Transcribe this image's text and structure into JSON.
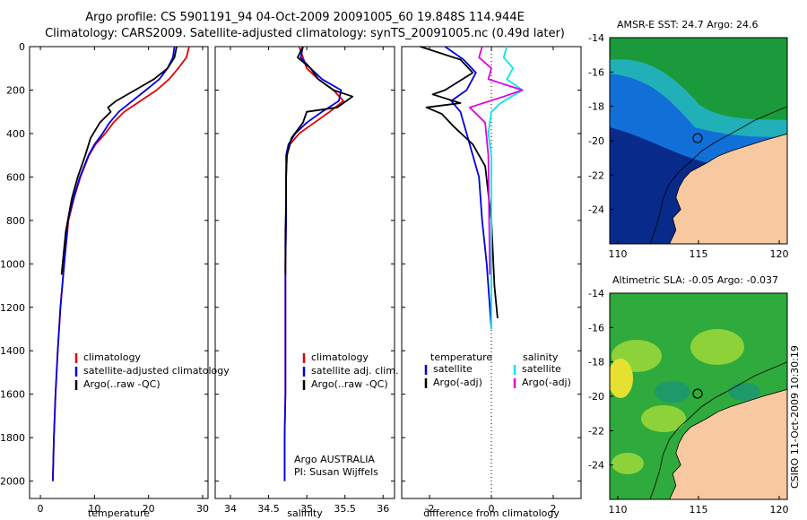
{
  "titles": {
    "line1": "Argo profile: CS 5901191_94 04-Oct-2009 20091005_60 19.848S 114.944E",
    "line2": "Climatology: CARS2009. Satellite-adjusted climatology: synTS_20091005.nc (0.49d later)"
  },
  "side_label": "CSIRO 11-Oct-2009 10:30:19",
  "colors": {
    "climatology": "#e00000",
    "satellite": "#0000e0",
    "argo": "#000000",
    "sal_satellite": "#00e8e8",
    "sal_argo": "#e000e0",
    "land": "#f8c8a0"
  },
  "chart_data": [
    {
      "type": "line",
      "id": "temperature",
      "xlabel": "temperature",
      "ylabel": "",
      "xlim": [
        -2,
        31
      ],
      "ylim": [
        2080,
        0
      ],
      "xticks": [
        0,
        10,
        20,
        30
      ],
      "yticks": [
        0,
        200,
        400,
        600,
        800,
        1000,
        1200,
        1400,
        1600,
        1800,
        2000
      ],
      "legend": [
        "climatology",
        "satellite-adjusted climatology",
        "Argo(..raw -QC)"
      ],
      "series": [
        {
          "name": "climatology",
          "color": "#e00000",
          "x": [
            27.5,
            27.0,
            25.5,
            23.8,
            21.5,
            18.5,
            15.5,
            13.5,
            12.0,
            10.2,
            9.0,
            7.4,
            6.2,
            5.2,
            4.4,
            3.7,
            3.2,
            2.8,
            2.5,
            2.3
          ],
          "y": [
            0,
            50,
            100,
            150,
            200,
            250,
            300,
            350,
            400,
            450,
            500,
            600,
            700,
            800,
            1000,
            1200,
            1400,
            1600,
            1800,
            2000
          ]
        },
        {
          "name": "satellite-adjusted climatology",
          "color": "#0000e0",
          "x": [
            24.8,
            24.5,
            23.5,
            22.0,
            19.5,
            17.0,
            14.5,
            12.8,
            11.5,
            10.0,
            8.9,
            7.3,
            6.1,
            5.1,
            4.4,
            3.7,
            3.2,
            2.8,
            2.5,
            2.3
          ],
          "y": [
            0,
            50,
            100,
            150,
            200,
            250,
            300,
            350,
            400,
            450,
            500,
            600,
            700,
            800,
            1000,
            1200,
            1400,
            1600,
            1800,
            2000
          ]
        },
        {
          "name": "Argo(..raw -QC)",
          "color": "#000000",
          "x": [
            25.2,
            24.8,
            23.5,
            21.0,
            17.5,
            14.0,
            12.5,
            13.0,
            11.0,
            9.3,
            8.3,
            6.9,
            5.8,
            4.7,
            3.9
          ],
          "y": [
            0,
            50,
            100,
            150,
            200,
            250,
            280,
            300,
            350,
            420,
            500,
            600,
            700,
            850,
            1050
          ]
        }
      ],
      "annotations": []
    },
    {
      "type": "line",
      "id": "salinity",
      "xlabel": "salinity",
      "ylabel": "",
      "xlim": [
        33.8,
        36.15
      ],
      "ylim": [
        2080,
        0
      ],
      "xticks": [
        34,
        34.5,
        35,
        35.5,
        36
      ],
      "legend": [
        "climatology",
        "satellite adj. clim.",
        "Argo(..raw -QC)"
      ],
      "series": [
        {
          "name": "climatology",
          "color": "#e00000",
          "x": [
            34.9,
            34.95,
            35.0,
            35.15,
            35.35,
            35.48,
            35.3,
            35.1,
            34.9,
            34.78,
            34.74,
            34.73,
            34.73,
            34.73,
            34.72,
            34.72,
            34.72,
            34.72,
            34.71,
            34.71
          ],
          "y": [
            0,
            50,
            100,
            150,
            200,
            250,
            300,
            350,
            400,
            450,
            500,
            600,
            700,
            800,
            1000,
            1200,
            1400,
            1600,
            1800,
            2000
          ]
        },
        {
          "name": "satellite adj. clim.",
          "color": "#0000e0",
          "x": [
            34.95,
            34.92,
            35.05,
            35.2,
            35.45,
            35.42,
            35.2,
            35.0,
            34.85,
            34.76,
            34.73,
            34.73,
            34.73,
            34.73,
            34.72,
            34.72,
            34.72,
            34.72,
            34.71,
            34.71
          ],
          "y": [
            0,
            50,
            100,
            150,
            200,
            250,
            300,
            350,
            400,
            450,
            500,
            600,
            700,
            800,
            1000,
            1200,
            1400,
            1600,
            1800,
            2000
          ]
        },
        {
          "name": "Argo(..raw -QC)",
          "color": "#000000",
          "x": [
            34.95,
            34.88,
            35.05,
            35.15,
            35.35,
            35.6,
            35.4,
            35.0,
            34.95,
            34.8,
            34.74,
            34.73,
            34.73,
            34.72,
            34.72
          ],
          "y": [
            0,
            50,
            100,
            150,
            200,
            230,
            280,
            300,
            350,
            420,
            500,
            600,
            700,
            850,
            1050
          ]
        }
      ],
      "annotations": [
        "Argo AUSTRALIA",
        "PI: Susan Wijffels"
      ]
    },
    {
      "type": "line",
      "id": "difference",
      "xlabel": "difference from climatology",
      "ylabel": "",
      "xlim": [
        -2.9,
        2.9
      ],
      "ylim": [
        2080,
        0
      ],
      "xticks": [
        -2,
        0,
        2
      ],
      "legend_groups": [
        {
          "title": "temperature",
          "items": [
            "satellite",
            "Argo(-adj)"
          ]
        },
        {
          "title": "salinity",
          "items": [
            "satellite",
            "Argo(-adj)"
          ]
        }
      ],
      "series": [
        {
          "name": "temperature satellite",
          "color": "#0000e0",
          "x": [
            -1.5,
            -0.9,
            -0.5,
            -0.8,
            -1.3,
            -1.0,
            -0.8,
            -0.6,
            -0.4,
            -0.3,
            -0.15,
            -0.05,
            0.0
          ],
          "y": [
            0,
            60,
            120,
            200,
            250,
            300,
            400,
            500,
            600,
            800,
            1000,
            1200,
            1300
          ]
        },
        {
          "name": "temperature Argo(-adj)",
          "color": "#000000",
          "x": [
            -2.3,
            -1.0,
            -0.6,
            -1.5,
            -1.9,
            -1.0,
            -2.1,
            -1.6,
            -1.2,
            -0.6,
            -0.2,
            0.0,
            0.1,
            0.2
          ],
          "y": [
            0,
            60,
            120,
            200,
            220,
            260,
            280,
            310,
            370,
            450,
            550,
            800,
            1100,
            1250
          ]
        },
        {
          "name": "salinity satellite",
          "color": "#00e8e8",
          "x": [
            0.5,
            0.4,
            0.7,
            0.5,
            1.0,
            0.3,
            0.0,
            -0.1,
            0.0,
            0.0,
            0.0,
            0.0
          ],
          "y": [
            0,
            50,
            100,
            150,
            200,
            260,
            300,
            400,
            500,
            700,
            1000,
            1300
          ]
        },
        {
          "name": "salinity Argo(-adj)",
          "color": "#e000e0",
          "x": [
            -0.3,
            -0.4,
            0.0,
            -0.1,
            1.0,
            0.4,
            -0.7,
            -0.2,
            -0.1,
            -0.05
          ],
          "y": [
            0,
            50,
            100,
            150,
            200,
            230,
            280,
            350,
            500,
            1050
          ]
        }
      ],
      "annotations": []
    },
    {
      "type": "heatmap",
      "id": "sst-map",
      "title": "AMSR-E SST: 24.7 Argo: 24.6",
      "xlim": [
        109.5,
        120.5
      ],
      "ylim": [
        -26,
        -14
      ],
      "xticks": [
        110,
        115,
        120
      ],
      "yticks": [
        -14,
        -16,
        -18,
        -20,
        -22,
        -24
      ],
      "profile_location": {
        "lon": 114.944,
        "lat": -19.848
      }
    },
    {
      "type": "heatmap",
      "id": "sla-map",
      "title": "Altimetric SLA: -0.05 Argo: -0.037",
      "xlim": [
        109.5,
        120.5
      ],
      "ylim": [
        -26,
        -14
      ],
      "xticks": [
        110,
        115,
        120
      ],
      "yticks": [
        -14,
        -16,
        -18,
        -20,
        -22,
        -24
      ],
      "profile_location": {
        "lon": 114.944,
        "lat": -19.848
      }
    }
  ]
}
